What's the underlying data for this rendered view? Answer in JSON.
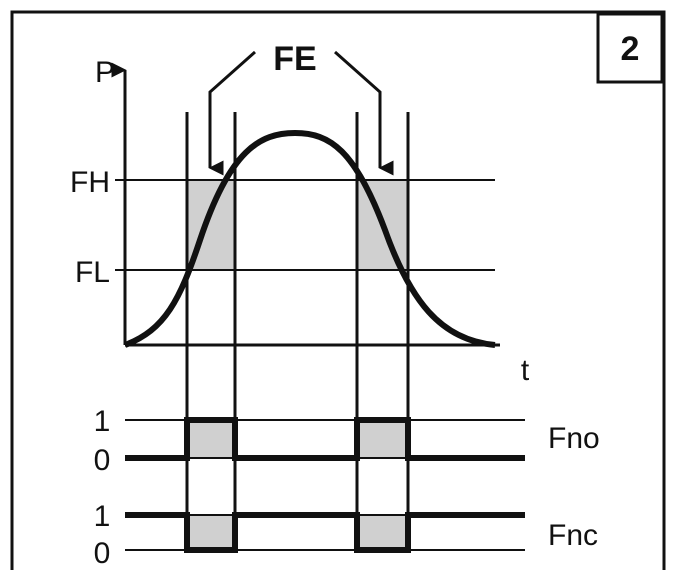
{
  "figure_number": "2",
  "axes": {
    "y_label": "P",
    "x_label": "t"
  },
  "annotation": "FE",
  "levels": {
    "high": "FH",
    "low": "FL"
  },
  "outputs": [
    {
      "name": "Fno",
      "state_high": "1",
      "state_low": "0"
    },
    {
      "name": "Fnc",
      "state_high": "1",
      "state_low": "0"
    }
  ]
}
